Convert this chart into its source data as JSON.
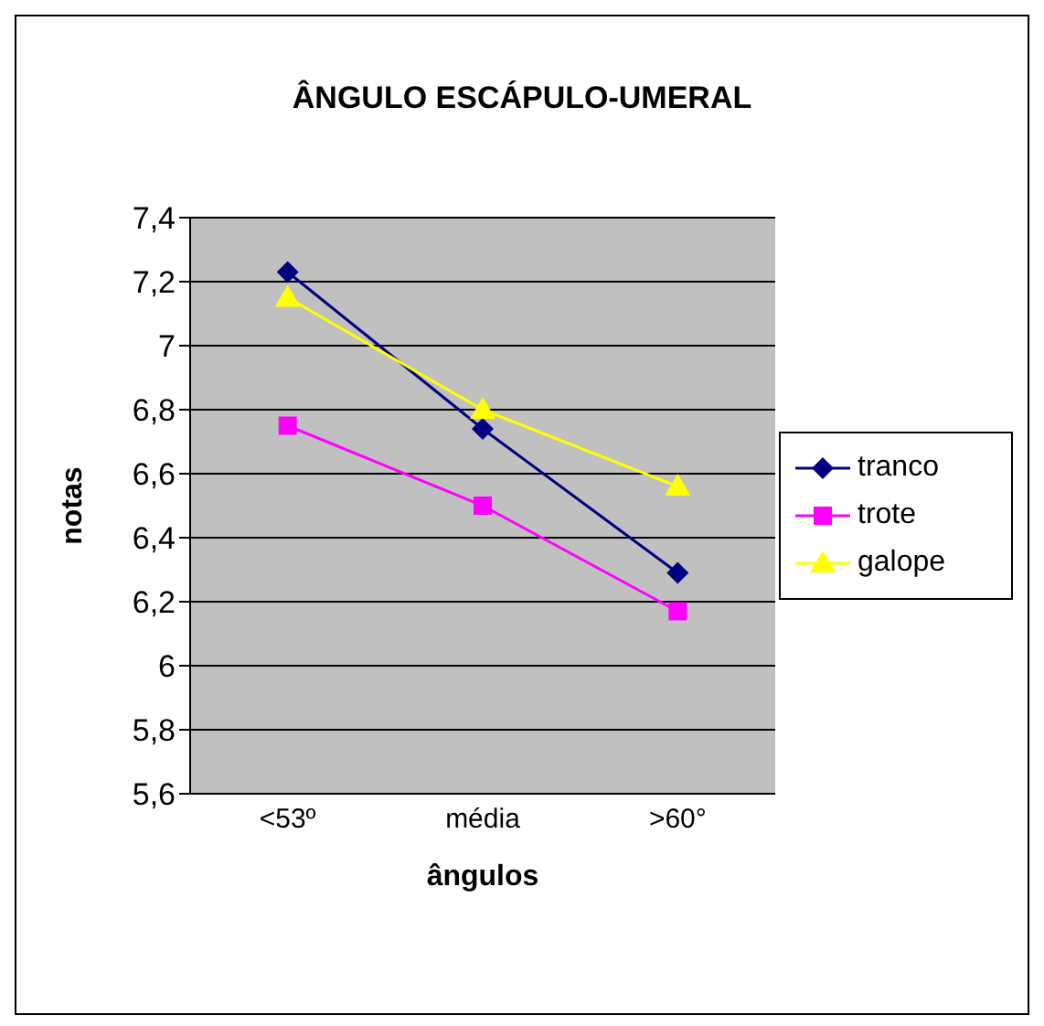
{
  "chart_data": {
    "type": "line",
    "title": "ÂNGULO ESCÁPULO-UMERAL",
    "xlabel": "ângulos",
    "ylabel": "notas",
    "categories": [
      "<53º",
      "média",
      ">60°"
    ],
    "series": [
      {
        "name": "tranco",
        "color": "#000080",
        "marker": "diamond",
        "values": [
          7.23,
          6.74,
          6.29
        ]
      },
      {
        "name": "trote",
        "color": "#ff00ff",
        "marker": "square",
        "values": [
          6.75,
          6.5,
          6.17
        ]
      },
      {
        "name": "galope",
        "color": "#ffff00",
        "marker": "triangle",
        "values": [
          7.15,
          6.8,
          6.56
        ]
      }
    ],
    "ylim": [
      5.6,
      7.4
    ],
    "yticks": [
      {
        "value": 5.6,
        "label": "5,6"
      },
      {
        "value": 5.8,
        "label": "5,8"
      },
      {
        "value": 6,
        "label": "6"
      },
      {
        "value": 6.2,
        "label": "6,2"
      },
      {
        "value": 6.4,
        "label": "6,4"
      },
      {
        "value": 6.6,
        "label": "6,6"
      },
      {
        "value": 6.8,
        "label": "6,8"
      },
      {
        "value": 7,
        "label": "7"
      },
      {
        "value": 7.2,
        "label": "7,2"
      },
      {
        "value": 7.4,
        "label": "7,4"
      }
    ],
    "grid": "y",
    "legend": "right"
  }
}
